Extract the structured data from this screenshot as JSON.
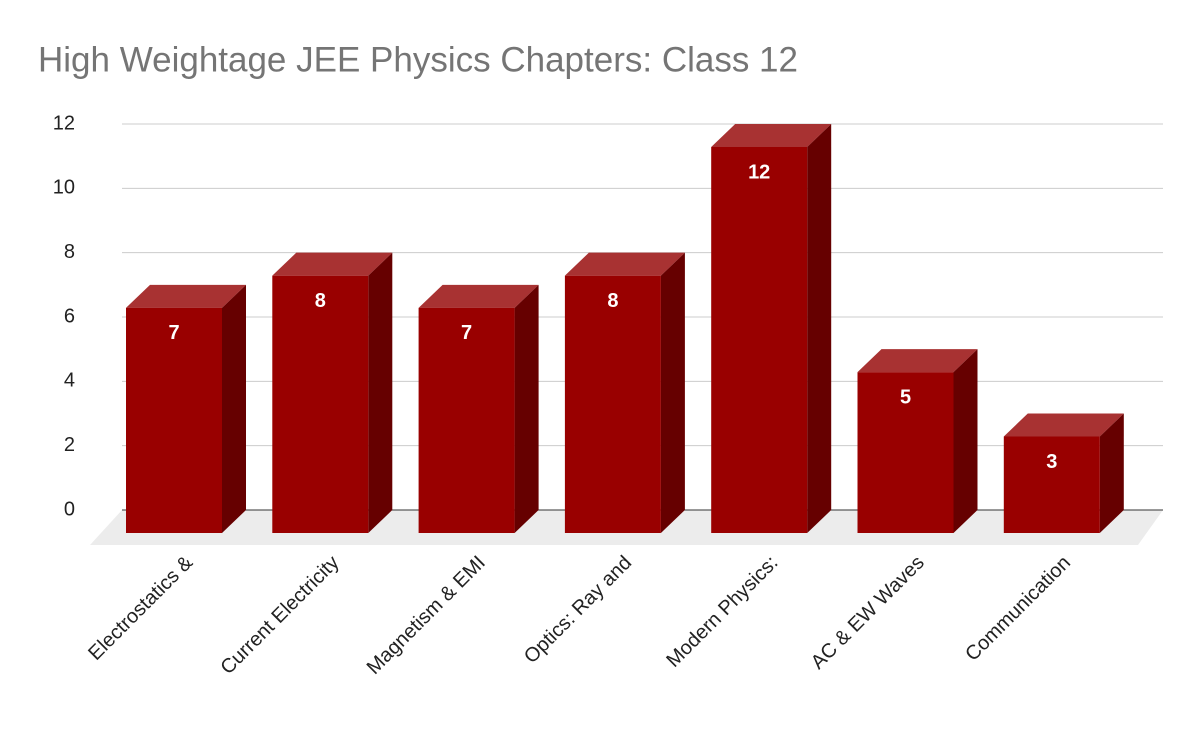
{
  "chart_data": {
    "type": "bar3d",
    "title": "High Weightage JEE Physics Chapters: Class 12",
    "categories": [
      "Electrostatics &",
      "Current Electricity",
      "Magnetism & EMI",
      "Optics: Ray and",
      "Modern Physics:",
      "AC & EW Waves",
      "Communication"
    ],
    "values": [
      7,
      8,
      7,
      8,
      12,
      5,
      3
    ],
    "color": "#990000",
    "ylim": [
      0,
      12
    ],
    "yticks": [
      0,
      2,
      4,
      6,
      8,
      10,
      12
    ],
    "grid": true
  }
}
